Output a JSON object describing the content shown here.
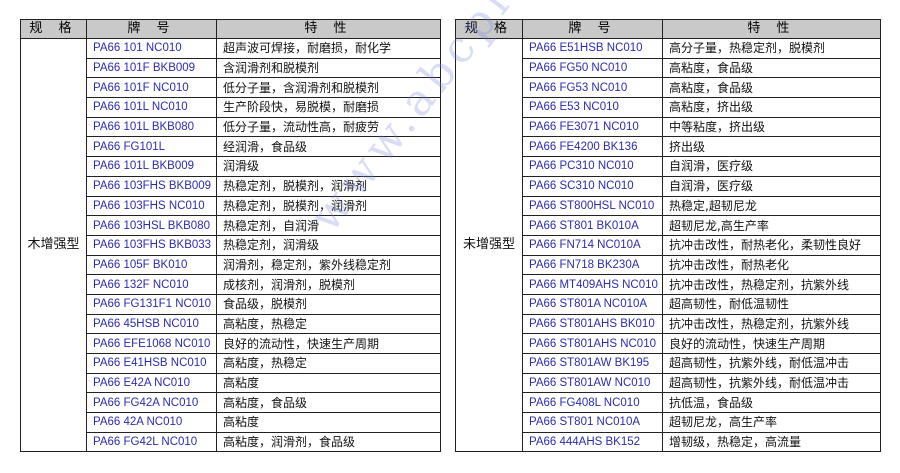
{
  "watermark": "www.abcplas.com",
  "headers": {
    "spec": "规 格",
    "brand": "牌 号",
    "property_left": "特 性",
    "property_right": "特 性"
  },
  "left_table": {
    "spec": "木增强型",
    "rows": [
      {
        "brand": "PA66 101 NC010",
        "property": "超声波可焊接，耐磨损，耐化学"
      },
      {
        "brand": "PA66 101F BKB009",
        "property": "含润滑剂和脱模剂"
      },
      {
        "brand": "PA66 101F NC010",
        "property": "低分子量，含润滑剂和脱模剂"
      },
      {
        "brand": "PA66 101L NC010",
        "property": "生产阶段快，易脱模，耐磨损"
      },
      {
        "brand": "PA66 101L BKB080",
        "property": "低分子量，流动性高，耐疲劳"
      },
      {
        "brand": "PA66 FG101L",
        "property": "经润滑，食品级"
      },
      {
        "brand": "PA66 101L BKB009",
        "property": "润滑级"
      },
      {
        "brand": "PA66 103FHS BKB009",
        "property": "热稳定剂，脱模剂，润滑剂"
      },
      {
        "brand": "PA66 103FHS NC010",
        "property": "热稳定剂，脱模剂，润滑剂"
      },
      {
        "brand": "PA66 103HSL BKB080",
        "property": "热稳定剂，自润滑"
      },
      {
        "brand": "PA66 103FHS BKB033",
        "property": "热稳定剂，润滑级"
      },
      {
        "brand": "PA66 105F BK010",
        "property": "润滑剂，稳定剂，紫外线稳定剂"
      },
      {
        "brand": "PA66 132F NC010",
        "property": "成核剂，润滑剂，脱模剂"
      },
      {
        "brand": "PA66 FG131F1 NC010",
        "property": "食品级，脱模剂"
      },
      {
        "brand": "PA66 45HSB NC010",
        "property": "高粘度，热稳定"
      },
      {
        "brand": "PA66 EFE1068 NC010",
        "property": "良好的流动性，快速生产周期"
      },
      {
        "brand": "PA66 E41HSB NC010",
        "property": "高粘度，热稳定"
      },
      {
        "brand": "PA66 E42A NC010",
        "property": "高粘度"
      },
      {
        "brand": "PA66 FG42A NC010",
        "property": "高粘度，食品级"
      },
      {
        "brand": "PA66 42A NC010",
        "property": "高粘度"
      },
      {
        "brand": "PA66 FG42L NC010",
        "property": "高粘度，润滑剂，食品级"
      }
    ]
  },
  "right_table": {
    "spec": "未增强型",
    "rows": [
      {
        "brand": "PA66 E51HSB NC010",
        "property": "高分子量，热稳定剂，脱模剂"
      },
      {
        "brand": "PA66 FG50 NC010",
        "property": "高粘度，食品级"
      },
      {
        "brand": "PA66 FG53 NC010",
        "property": "高粘度，食品级"
      },
      {
        "brand": "PA66 E53 NC010",
        "property": "高粘度，挤出级"
      },
      {
        "brand": "PA66 FE3071 NC010",
        "property": "中等粘度，挤出级"
      },
      {
        "brand": "PA66 FE4200 BK136",
        "property": "挤出级"
      },
      {
        "brand": "PA66 PC310 NC010",
        "property": "自润滑，医疗级"
      },
      {
        "brand": "PA66 SC310 NC010",
        "property": "自润滑，医疗级"
      },
      {
        "brand": "PA66 ST800HSL NC010",
        "property": "热稳定,超韧尼龙"
      },
      {
        "brand": "PA66 ST801 BK010A",
        "property": "超韧尼龙,高生产率"
      },
      {
        "brand": "PA66 FN714 NC010A",
        "property": "抗冲击改性，耐热老化，柔韧性良好"
      },
      {
        "brand": "PA66 FN718 BK230A",
        "property": "抗冲击改性，耐热老化"
      },
      {
        "brand": "PA66 MT409AHS NC010",
        "property": "抗冲击改性，热稳定剂，抗紫外线"
      },
      {
        "brand": "PA66 ST801A NC010A",
        "property": "超高韧性，耐低温韧性"
      },
      {
        "brand": "PA66 ST801AHS BK010",
        "property": "抗冲击改性，热稳定剂，抗紫外线"
      },
      {
        "brand": "PA66 ST801AHS NC010",
        "property": "良好的流动性，快速生产周期"
      },
      {
        "brand": "PA66 ST801AW BK195",
        "property": "超高韧性，抗紫外线，耐低温冲击"
      },
      {
        "brand": "PA66 ST801AW NC010",
        "property": "超高韧性，抗紫外线，耐低温冲击"
      },
      {
        "brand": "PA66 FG408L NC010",
        "property": "抗低温，食品级"
      },
      {
        "brand": "PA66 ST801 NC010A",
        "property": "超韧尼龙，高生产率"
      },
      {
        "brand": "PA66 444AHS BK152",
        "property": "增韧级，热稳定，高流量"
      }
    ]
  }
}
